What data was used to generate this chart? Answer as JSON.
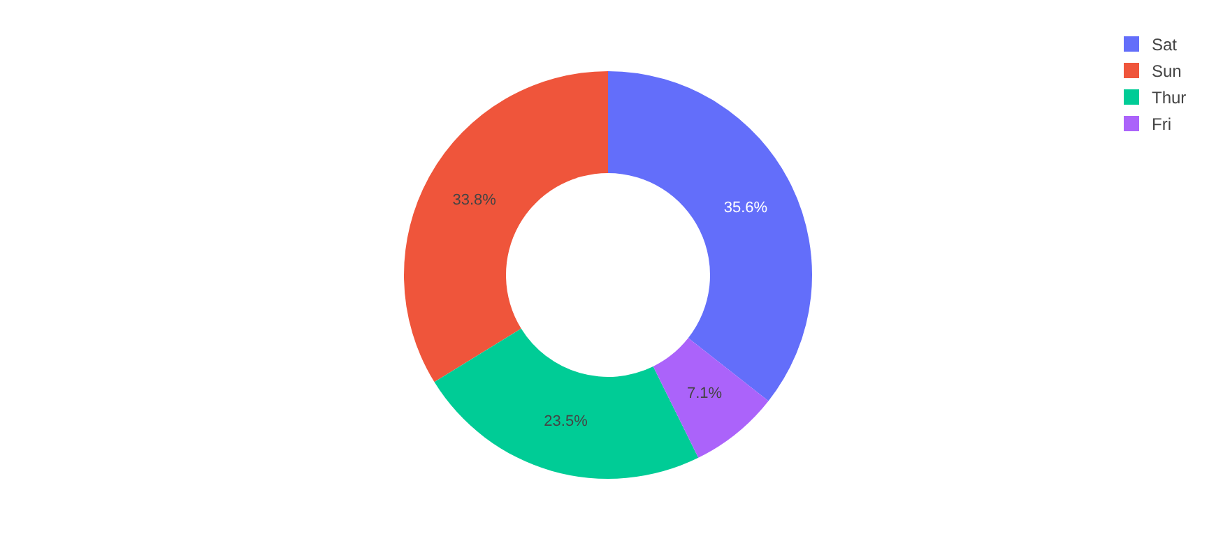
{
  "chart_data": {
    "type": "donut",
    "categories": [
      "Sat",
      "Sun",
      "Thur",
      "Fri"
    ],
    "values": [
      35.6,
      33.8,
      23.5,
      7.1
    ],
    "colors": [
      "#636efa",
      "#ef553b",
      "#00cc96",
      "#ab63fa"
    ],
    "value_labels": [
      "35.6%",
      "33.8%",
      "23.5%",
      "7.1%"
    ],
    "legend": "top right"
  }
}
